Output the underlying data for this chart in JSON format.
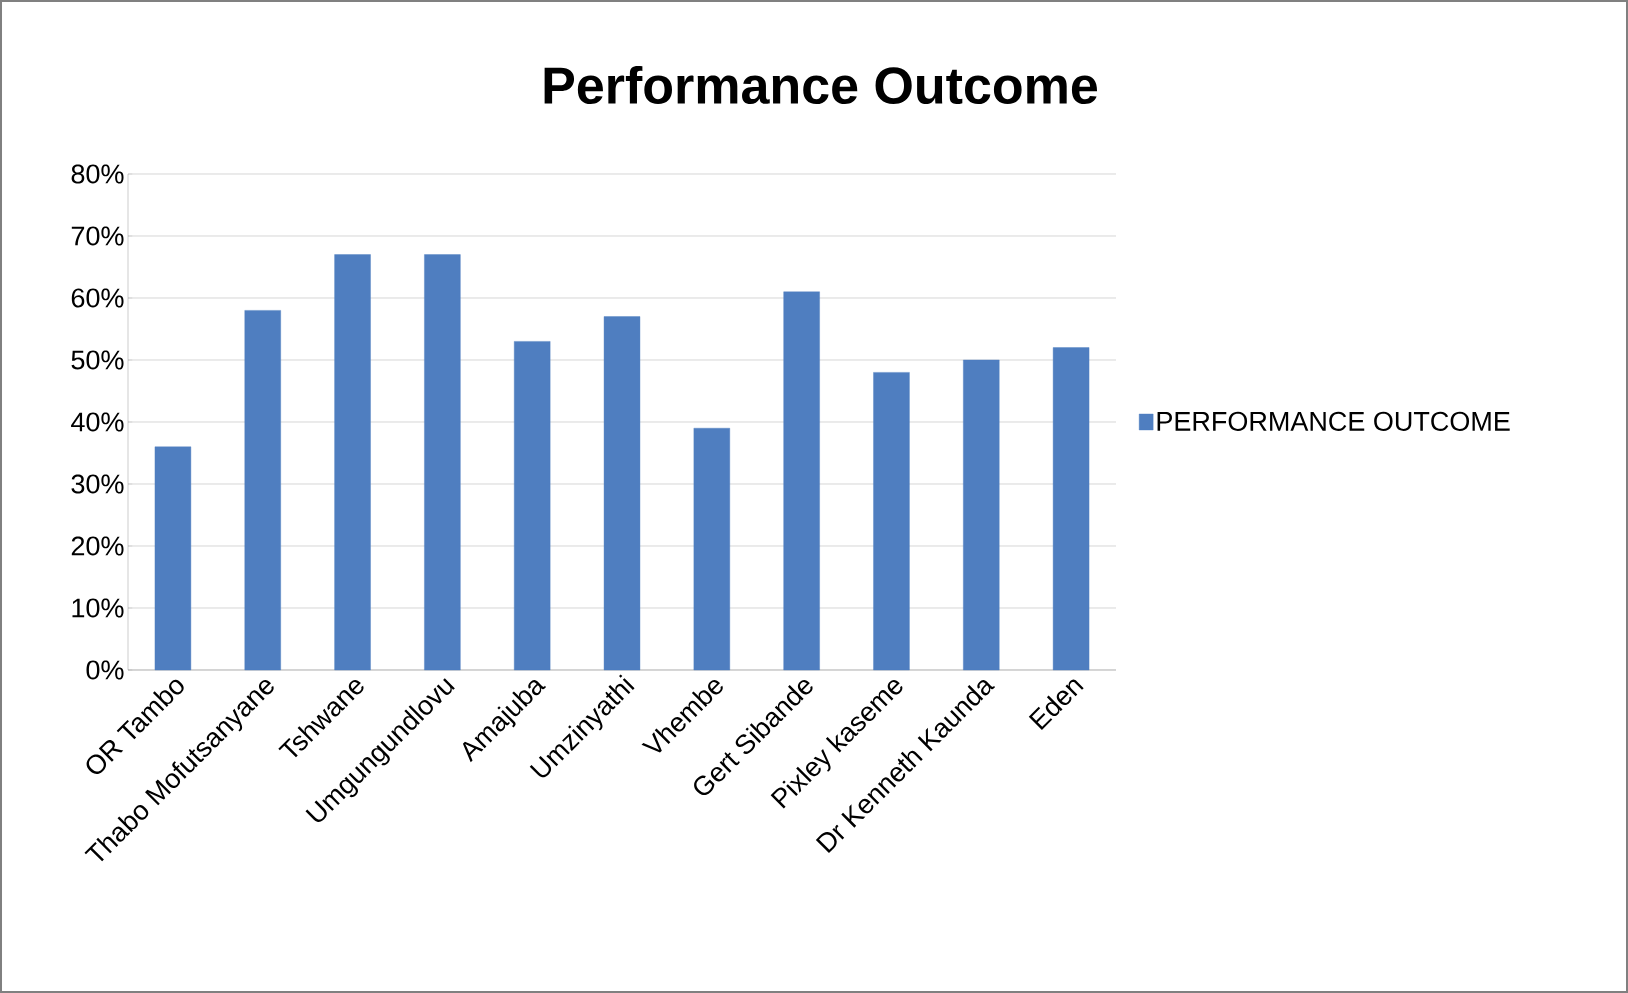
{
  "chart_data": {
    "type": "bar",
    "title": "Performance Outcome",
    "categories": [
      "OR Tambo",
      "Thabo Mofutsanyane",
      "Tshwane",
      "Umgungundlovu",
      "Amajuba",
      "Umzinyathi",
      "Vhembe",
      "Gert Sibande",
      "Pixley kaseme",
      "Dr Kenneth Kaunda",
      "Eden"
    ],
    "series": [
      {
        "name": "PERFORMANCE OUTCOME",
        "color": "#4f7ec0",
        "values": [
          36,
          58,
          67,
          67,
          53,
          57,
          39,
          61,
          48,
          50,
          52
        ]
      }
    ],
    "ylim": [
      0,
      80
    ],
    "yticks": [
      {
        "value": 0,
        "label": "0%"
      },
      {
        "value": 10,
        "label": "10%"
      },
      {
        "value": 20,
        "label": "20%"
      },
      {
        "value": 30,
        "label": "30%"
      },
      {
        "value": 40,
        "label": "40%"
      },
      {
        "value": 50,
        "label": "50%"
      },
      {
        "value": 60,
        "label": "60%"
      },
      {
        "value": 70,
        "label": "70%"
      },
      {
        "value": 80,
        "label": "80%"
      }
    ],
    "grid": "y",
    "legend": "right"
  }
}
